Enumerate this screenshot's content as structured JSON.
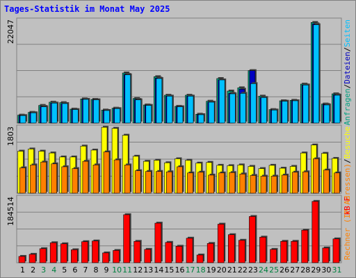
{
  "title": "Tages-Statistik im Monat May 2025",
  "colors": {
    "background": "#c0c0c0",
    "title": "#0000ff",
    "anfragen": "#00a080",
    "dateien": "#0000c0",
    "seiten": "#00c0ff",
    "rechner": "#ff8000",
    "besuche": "#ffff00",
    "kbytes": "#ff0000",
    "weekend_label": "#008040"
  },
  "chart_data": [
    {
      "type": "bar",
      "title": "",
      "ymax_label": "22047",
      "ymax": 22047,
      "legend": [
        {
          "label": "Anfragen",
          "color": "#00a080"
        },
        {
          "label": "/",
          "color": "#000000"
        },
        {
          "label": "Dateien",
          "color": "#0000c0"
        },
        {
          "label": "/",
          "color": "#000000"
        },
        {
          "label": "Seiten",
          "color": "#00c0ff"
        }
      ],
      "categories": [
        "1",
        "2",
        "3",
        "4",
        "5",
        "6",
        "7",
        "8",
        "9",
        "10",
        "11",
        "12",
        "13",
        "14",
        "15",
        "16",
        "17",
        "18",
        "19",
        "20",
        "21",
        "22",
        "23",
        "24",
        "25",
        "26",
        "27",
        "28",
        "29",
        "30",
        "31"
      ],
      "series": [
        {
          "name": "Anfragen",
          "values": [
            1700,
            2300,
            3800,
            4500,
            4400,
            3000,
            5200,
            5100,
            2800,
            3200,
            10800,
            5300,
            3900,
            10000,
            6000,
            3600,
            6000,
            1900,
            4700,
            9600,
            6900,
            7600,
            11300,
            5800,
            2900,
            4800,
            4900,
            8400,
            21700,
            4100,
            6300
          ]
        },
        {
          "name": "Dateien",
          "values": [
            1600,
            2200,
            3600,
            4300,
            4200,
            2900,
            5100,
            5000,
            2700,
            3100,
            10500,
            5100,
            3800,
            9700,
            5800,
            3500,
            5800,
            1800,
            4500,
            9300,
            6400,
            7300,
            11300,
            5500,
            2800,
            4700,
            4800,
            8200,
            21400,
            4000,
            6100
          ]
        },
        {
          "name": "Seiten",
          "values": [
            1600,
            2200,
            3500,
            4300,
            4200,
            2900,
            5100,
            5000,
            2700,
            3100,
            10400,
            5000,
            3800,
            9600,
            5800,
            3500,
            5800,
            1800,
            4500,
            9300,
            6300,
            6400,
            8500,
            5500,
            2800,
            4700,
            4800,
            8200,
            21200,
            3900,
            6000
          ]
        }
      ]
    },
    {
      "type": "bar",
      "title": "",
      "ymax_label": "1803",
      "ymax": 1803,
      "legend": [
        {
          "label": "Rechner",
          "color": "#ff8000"
        },
        {
          "label": "(IP-Adressen)",
          "color": "#ff8000"
        },
        {
          "label": "/",
          "color": "#000000"
        },
        {
          "label": "Besuche",
          "color": "#ffff00"
        }
      ],
      "categories": [
        "1",
        "2",
        "3",
        "4",
        "5",
        "6",
        "7",
        "8",
        "9",
        "10",
        "11",
        "12",
        "13",
        "14",
        "15",
        "16",
        "17",
        "18",
        "19",
        "20",
        "21",
        "22",
        "23",
        "24",
        "25",
        "26",
        "27",
        "28",
        "29",
        "30",
        "31"
      ],
      "series": [
        {
          "name": "Besuche",
          "values": [
            1160,
            1220,
            1160,
            1110,
            1000,
            1000,
            1300,
            1190,
            1820,
            1790,
            1600,
            1020,
            880,
            910,
            840,
            950,
            910,
            830,
            850,
            770,
            760,
            780,
            740,
            680,
            770,
            690,
            740,
            1110,
            1330,
            1100,
            960
          ]
        },
        {
          "name": "Rechner",
          "values": [
            700,
            780,
            860,
            810,
            730,
            680,
            880,
            780,
            1140,
            920,
            780,
            620,
            600,
            600,
            590,
            730,
            560,
            580,
            500,
            560,
            570,
            530,
            490,
            470,
            470,
            500,
            580,
            590,
            950,
            640,
            560
          ]
        }
      ]
    },
    {
      "type": "bar",
      "title": "",
      "ymax_label": "184514",
      "ymax": 184514,
      "legend": [
        {
          "label": "kB F",
          "color": "#ff0000"
        }
      ],
      "categories": [
        "1",
        "2",
        "3",
        "4",
        "5",
        "6",
        "7",
        "8",
        "9",
        "10",
        "11",
        "12",
        "13",
        "14",
        "15",
        "16",
        "17",
        "18",
        "19",
        "20",
        "21",
        "22",
        "23",
        "24",
        "25",
        "26",
        "27",
        "28",
        "29",
        "30",
        "31"
      ],
      "series": [
        {
          "name": "kB F",
          "values": [
            18000,
            24000,
            40000,
            57000,
            54000,
            37000,
            60000,
            62000,
            28000,
            35000,
            137000,
            61000,
            38000,
            113000,
            58000,
            47000,
            70000,
            22000,
            55000,
            110000,
            80000,
            64000,
            132000,
            73000,
            38000,
            61000,
            61000,
            93000,
            175000,
            42000,
            68000
          ]
        }
      ]
    }
  ],
  "weekend_days": [
    "3",
    "4",
    "10",
    "11",
    "17",
    "18",
    "24",
    "25",
    "31"
  ]
}
